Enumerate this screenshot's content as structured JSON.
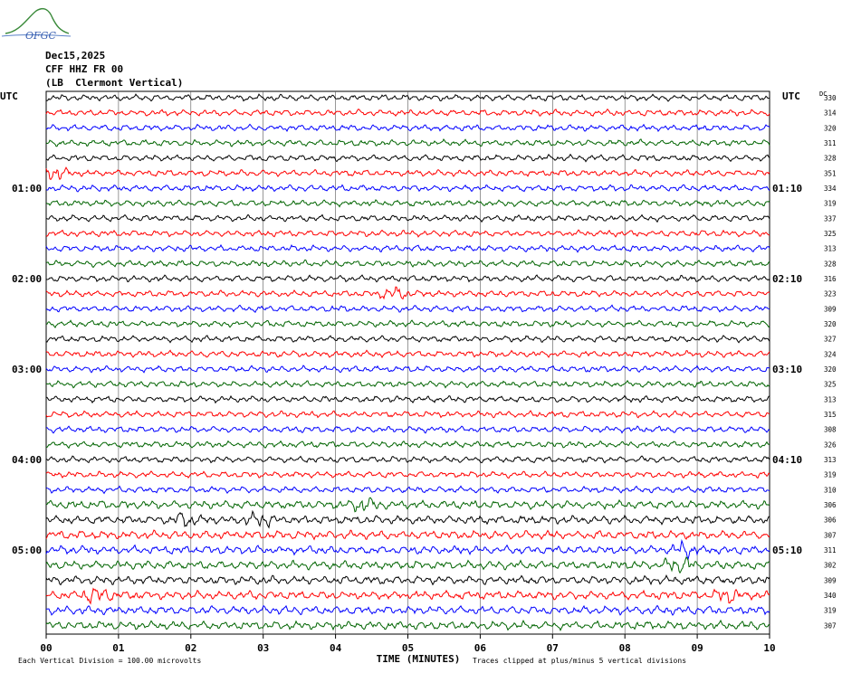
{
  "logo": {
    "text": "OFGC"
  },
  "header": {
    "date": "Dec15,2025",
    "station": "CFF HHZ FR 00",
    "description": "(LB  Clermont Vertical)"
  },
  "chart_data": {
    "type": "line",
    "title": "",
    "xlabel": "TIME (MINUTES)",
    "ylabel": "",
    "xlim": [
      0,
      10
    ],
    "x_ticks": [
      "00",
      "01",
      "02",
      "03",
      "04",
      "05",
      "06",
      "07",
      "08",
      "09",
      "10"
    ],
    "left_axis_label": "UTC",
    "right_axis_label": "UTC",
    "left_hour_labels": [
      {
        "row": 6,
        "label": "01:00"
      },
      {
        "row": 12,
        "label": "02:00"
      },
      {
        "row": 18,
        "label": "03:00"
      },
      {
        "row": 24,
        "label": "04:00"
      },
      {
        "row": 30,
        "label": "05:00"
      }
    ],
    "right_hour_labels": [
      {
        "row": 6,
        "label": "01:10"
      },
      {
        "row": 12,
        "label": "02:10"
      },
      {
        "row": 18,
        "label": "03:10"
      },
      {
        "row": 24,
        "label": "04:10"
      },
      {
        "row": 30,
        "label": "05:10"
      }
    ],
    "dc_label": "DC",
    "dc_offsets": [
      330,
      314,
      320,
      311,
      328,
      351,
      334,
      319,
      337,
      325,
      313,
      328,
      316,
      323,
      309,
      320,
      327,
      324,
      320,
      325,
      313,
      315,
      308,
      326,
      313,
      319,
      310,
      306,
      306,
      307,
      311,
      302,
      309,
      340,
      319,
      307
    ],
    "trace_colors": [
      "#000000",
      "#ff0000",
      "#0000ff",
      "#006400"
    ],
    "events": [
      {
        "row": 5,
        "minute": 0.1,
        "amp": 2.2
      },
      {
        "row": 13,
        "minute": 4.8,
        "amp": 2.0
      },
      {
        "row": 28,
        "minute": 1.9,
        "amp": 1.8
      },
      {
        "row": 28,
        "minute": 2.95,
        "amp": 2.2
      },
      {
        "row": 27,
        "minute": 4.4,
        "amp": 1.6
      },
      {
        "row": 31,
        "minute": 8.75,
        "amp": 2.2
      },
      {
        "row": 33,
        "minute": 0.7,
        "amp": 2.6
      },
      {
        "row": 33,
        "minute": 9.4,
        "amp": 1.8
      },
      {
        "row": 30,
        "minute": 8.85,
        "amp": 1.6
      }
    ]
  },
  "footer": {
    "scale_note": "Each Vertical Division =  100.00 microvolts",
    "clip_note": "Traces clipped at plus/minus 5 vertical divisions"
  }
}
